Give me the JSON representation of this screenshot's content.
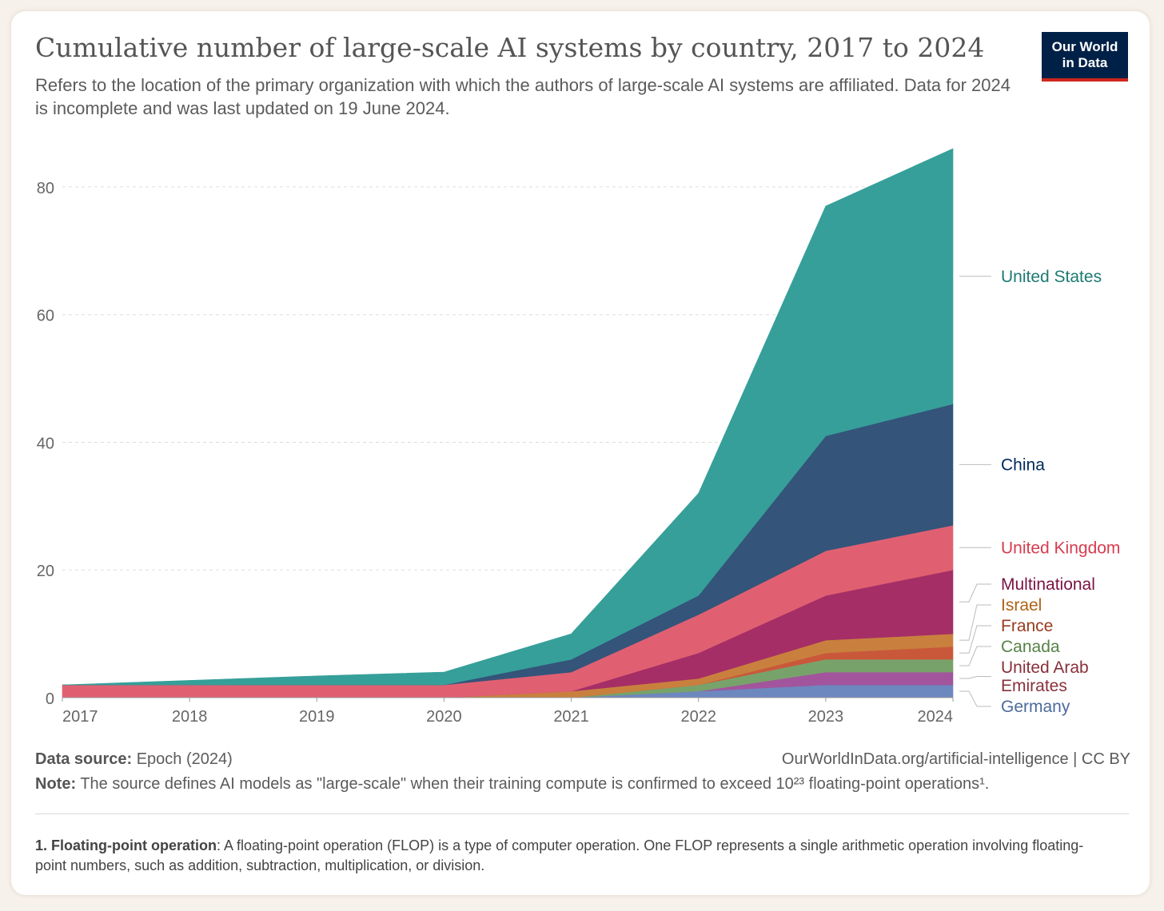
{
  "header": {
    "title": "Cumulative number of large-scale AI systems by country, 2017 to 2024",
    "subtitle": "Refers to the location of the primary organization with which the authors of large-scale AI systems are affiliated. Data for 2024 is incomplete and was last updated on 19 June 2024.",
    "logo_line1": "Our World",
    "logo_line2": "in Data"
  },
  "footer": {
    "source_label": "Data source:",
    "source_value": "Epoch (2024)",
    "url": "OurWorldInData.org/artificial-intelligence | CC BY",
    "note_label": "Note:",
    "note_text": "The source defines AI models as \"large-scale\" when their training compute is confirmed to exceed 10²³ floating-point operations¹.",
    "footnote_label": "1. Floating-point operation",
    "footnote_text": ": A floating-point operation (FLOP) is a type of computer operation. One FLOP represents a single arithmetic operation involving floating-point numbers, such as addition, subtraction, multiplication, or division."
  },
  "chart_data": {
    "type": "area",
    "stacked": true,
    "x": [
      2017,
      2018,
      2019,
      2020,
      2021,
      2022,
      2023,
      2024
    ],
    "x_tick_labels": [
      "2017",
      "2018",
      "2019",
      "2020",
      "2021",
      "2022",
      "2023",
      "2024"
    ],
    "ylim": [
      0,
      86
    ],
    "y_ticks": [
      0,
      20,
      40,
      60,
      80
    ],
    "y_tick_labels": [
      "0",
      "20",
      "40",
      "60",
      "80"
    ],
    "grid": "horizontal dashed",
    "legend": "right, inline labels",
    "series": [
      {
        "name": "Germany",
        "color": "#6d87bf",
        "label_color": "#4c6a9c",
        "values": [
          0,
          0,
          0,
          0,
          0,
          1,
          2,
          2
        ]
      },
      {
        "name": "United Arab Emirates",
        "color": "#a2559c",
        "label_color": "#883039",
        "label_lines": [
          "United Arab",
          "Emirates"
        ],
        "values": [
          0,
          0,
          0,
          0,
          0,
          0,
          2,
          2
        ]
      },
      {
        "name": "Canada",
        "color": "#77a36b",
        "label_color": "#578145",
        "values": [
          0,
          0,
          0,
          0,
          0,
          1,
          2,
          2
        ]
      },
      {
        "name": "France",
        "color": "#c9583b",
        "label_color": "#9a3a1f",
        "values": [
          0,
          0,
          0,
          0,
          0,
          0,
          1,
          2
        ]
      },
      {
        "name": "Israel",
        "color": "#c9803e",
        "label_color": "#b16214",
        "values": [
          0,
          0,
          0,
          0,
          1,
          1,
          2,
          2
        ]
      },
      {
        "name": "Multinational",
        "color": "#a52e66",
        "label_color": "#7b1244",
        "values": [
          0,
          0,
          0,
          0,
          0,
          4,
          7,
          10
        ]
      },
      {
        "name": "United Kingdom",
        "color": "#e06072",
        "label_color": "#d73c50",
        "values": [
          2,
          2,
          2,
          2,
          3,
          6,
          7,
          7
        ]
      },
      {
        "name": "China",
        "color": "#34547a",
        "label_color": "#00295b",
        "values": [
          0,
          0,
          0,
          0,
          2,
          3,
          18,
          19
        ]
      },
      {
        "name": "United States",
        "color": "#369f99",
        "label_color": "#1d7a73",
        "values": [
          0,
          0.7,
          1.4,
          2,
          4,
          16,
          36,
          40
        ]
      }
    ]
  }
}
